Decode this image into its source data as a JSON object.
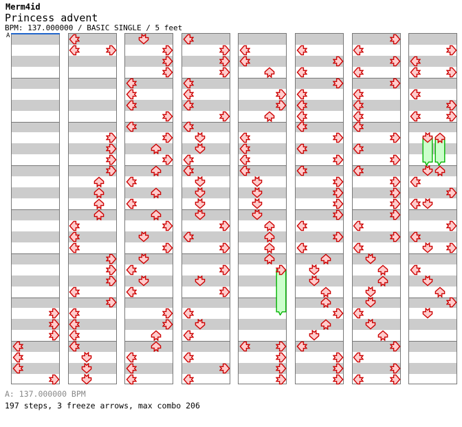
{
  "header": {
    "artist": "Merm4id",
    "title": "Princess advent",
    "meta": "BPM: 137.000000 / BASIC SINGLE / 5 feet"
  },
  "footer": {
    "bpm_line": "A: 137.000000 BPM",
    "stats_line": "197 steps, 3 freeze arrows, max combo 206"
  },
  "colors": {
    "stripe_gray": "#cccccc",
    "stripe_white": "#ffffff",
    "column_border": "#777777",
    "measure_line": "#777777",
    "arrow_fill": "#ffcccc",
    "arrow_stroke": "#cc0000",
    "freeze_fill": "#ccffcc",
    "freeze_stroke": "#00b400",
    "marker_blue": "#2266cc",
    "footer_gray": "#888888"
  },
  "chart_data": {
    "type": "ddr-step-chart",
    "title": "Princess advent",
    "bpm": "137.000000",
    "difficulty": "BASIC SINGLE",
    "feet": 5,
    "columns": 8,
    "measures_per_column": 8,
    "beats_per_measure": 4,
    "lanes": [
      "L",
      "D",
      "U",
      "R"
    ],
    "markers": [
      {
        "label": "A",
        "column": 0,
        "color": "#2266cc"
      }
    ],
    "steps": [
      [
        0,
        25,
        "R"
      ],
      [
        0,
        26,
        "R"
      ],
      [
        0,
        27,
        "R"
      ],
      [
        0,
        28,
        "L"
      ],
      [
        0,
        29,
        "L"
      ],
      [
        0,
        30,
        "L"
      ],
      [
        0,
        31,
        "R"
      ],
      [
        1,
        0,
        "L"
      ],
      [
        1,
        1,
        "L"
      ],
      [
        1,
        1,
        "R"
      ],
      [
        1,
        9,
        "R"
      ],
      [
        1,
        10,
        "R"
      ],
      [
        1,
        11,
        "R"
      ],
      [
        1,
        12,
        "R"
      ],
      [
        1,
        13,
        "U"
      ],
      [
        1,
        14,
        "U"
      ],
      [
        1,
        15,
        "U"
      ],
      [
        1,
        16,
        "U"
      ],
      [
        1,
        17,
        "L"
      ],
      [
        1,
        18,
        "L"
      ],
      [
        1,
        19,
        "L"
      ],
      [
        1,
        20,
        "R"
      ],
      [
        1,
        21,
        "R"
      ],
      [
        1,
        22,
        "R"
      ],
      [
        1,
        23,
        "L"
      ],
      [
        1,
        24,
        "R"
      ],
      [
        1,
        25,
        "L"
      ],
      [
        1,
        26,
        "L"
      ],
      [
        1,
        27,
        "L"
      ],
      [
        1,
        28,
        "L"
      ],
      [
        1,
        29,
        "D"
      ],
      [
        1,
        30,
        "D"
      ],
      [
        1,
        31,
        "D"
      ],
      [
        2,
        0,
        "D"
      ],
      [
        2,
        1,
        "R"
      ],
      [
        2,
        2,
        "R"
      ],
      [
        2,
        3,
        "R"
      ],
      [
        2,
        4,
        "L"
      ],
      [
        2,
        5,
        "L"
      ],
      [
        2,
        6,
        "L"
      ],
      [
        2,
        7,
        "R"
      ],
      [
        2,
        8,
        "L"
      ],
      [
        2,
        9,
        "R"
      ],
      [
        2,
        10,
        "U"
      ],
      [
        2,
        11,
        "R"
      ],
      [
        2,
        12,
        "U"
      ],
      [
        2,
        13,
        "L"
      ],
      [
        2,
        14,
        "U"
      ],
      [
        2,
        15,
        "L"
      ],
      [
        2,
        16,
        "U"
      ],
      [
        2,
        17,
        "R"
      ],
      [
        2,
        18,
        "D"
      ],
      [
        2,
        19,
        "R"
      ],
      [
        2,
        20,
        "D"
      ],
      [
        2,
        21,
        "L"
      ],
      [
        2,
        22,
        "D"
      ],
      [
        2,
        23,
        "L"
      ],
      [
        2,
        25,
        "R"
      ],
      [
        2,
        26,
        "R"
      ],
      [
        2,
        27,
        "U"
      ],
      [
        2,
        28,
        "U"
      ],
      [
        2,
        29,
        "L"
      ],
      [
        2,
        30,
        "L"
      ],
      [
        2,
        31,
        "L"
      ],
      [
        3,
        0,
        "L"
      ],
      [
        3,
        1,
        "R"
      ],
      [
        3,
        2,
        "R"
      ],
      [
        3,
        3,
        "R"
      ],
      [
        3,
        4,
        "L"
      ],
      [
        3,
        5,
        "L"
      ],
      [
        3,
        6,
        "L"
      ],
      [
        3,
        7,
        "R"
      ],
      [
        3,
        8,
        "L"
      ],
      [
        3,
        9,
        "D"
      ],
      [
        3,
        10,
        "D"
      ],
      [
        3,
        11,
        "L"
      ],
      [
        3,
        12,
        "L"
      ],
      [
        3,
        13,
        "D"
      ],
      [
        3,
        14,
        "D"
      ],
      [
        3,
        15,
        "D"
      ],
      [
        3,
        16,
        "D"
      ],
      [
        3,
        17,
        "R"
      ],
      [
        3,
        18,
        "L"
      ],
      [
        3,
        19,
        "R"
      ],
      [
        3,
        21,
        "R"
      ],
      [
        3,
        22,
        "D"
      ],
      [
        3,
        23,
        "R"
      ],
      [
        3,
        25,
        "L"
      ],
      [
        3,
        26,
        "D"
      ],
      [
        3,
        27,
        "L"
      ],
      [
        3,
        29,
        "L"
      ],
      [
        3,
        30,
        "R"
      ],
      [
        3,
        31,
        "L"
      ],
      [
        4,
        1,
        "L"
      ],
      [
        4,
        2,
        "L"
      ],
      [
        4,
        3,
        "U"
      ],
      [
        4,
        5,
        "R"
      ],
      [
        4,
        6,
        "R"
      ],
      [
        4,
        7,
        "U"
      ],
      [
        4,
        9,
        "L"
      ],
      [
        4,
        10,
        "L"
      ],
      [
        4,
        11,
        "L"
      ],
      [
        4,
        12,
        "L"
      ],
      [
        4,
        13,
        "D"
      ],
      [
        4,
        14,
        "D"
      ],
      [
        4,
        15,
        "D"
      ],
      [
        4,
        16,
        "D"
      ],
      [
        4,
        17,
        "U"
      ],
      [
        4,
        18,
        "U"
      ],
      [
        4,
        19,
        "U"
      ],
      [
        4,
        20,
        "U"
      ],
      [
        4,
        21,
        "R"
      ],
      [
        4,
        28,
        "L"
      ],
      [
        4,
        28,
        "R"
      ],
      [
        4,
        29,
        "R"
      ],
      [
        4,
        30,
        "R"
      ],
      [
        4,
        31,
        "R"
      ],
      [
        5,
        1,
        "L"
      ],
      [
        5,
        2,
        "R"
      ],
      [
        5,
        3,
        "L"
      ],
      [
        5,
        4,
        "R"
      ],
      [
        5,
        5,
        "L"
      ],
      [
        5,
        6,
        "L"
      ],
      [
        5,
        7,
        "L"
      ],
      [
        5,
        8,
        "L"
      ],
      [
        5,
        9,
        "R"
      ],
      [
        5,
        10,
        "L"
      ],
      [
        5,
        11,
        "R"
      ],
      [
        5,
        12,
        "L"
      ],
      [
        5,
        13,
        "R"
      ],
      [
        5,
        14,
        "R"
      ],
      [
        5,
        15,
        "R"
      ],
      [
        5,
        16,
        "R"
      ],
      [
        5,
        17,
        "L"
      ],
      [
        5,
        18,
        "R"
      ],
      [
        5,
        19,
        "L"
      ],
      [
        5,
        20,
        "U"
      ],
      [
        5,
        21,
        "D"
      ],
      [
        5,
        22,
        "D"
      ],
      [
        5,
        23,
        "U"
      ],
      [
        5,
        24,
        "U"
      ],
      [
        5,
        25,
        "R"
      ],
      [
        5,
        26,
        "U"
      ],
      [
        5,
        27,
        "D"
      ],
      [
        5,
        28,
        "L"
      ],
      [
        5,
        29,
        "R"
      ],
      [
        5,
        30,
        "R"
      ],
      [
        5,
        31,
        "R"
      ],
      [
        6,
        0,
        "R"
      ],
      [
        6,
        1,
        "L"
      ],
      [
        6,
        2,
        "R"
      ],
      [
        6,
        3,
        "L"
      ],
      [
        6,
        4,
        "R"
      ],
      [
        6,
        5,
        "L"
      ],
      [
        6,
        6,
        "L"
      ],
      [
        6,
        7,
        "L"
      ],
      [
        6,
        8,
        "L"
      ],
      [
        6,
        9,
        "R"
      ],
      [
        6,
        10,
        "L"
      ],
      [
        6,
        11,
        "R"
      ],
      [
        6,
        12,
        "L"
      ],
      [
        6,
        13,
        "R"
      ],
      [
        6,
        14,
        "R"
      ],
      [
        6,
        15,
        "R"
      ],
      [
        6,
        16,
        "R"
      ],
      [
        6,
        17,
        "L"
      ],
      [
        6,
        18,
        "R"
      ],
      [
        6,
        19,
        "L"
      ],
      [
        6,
        20,
        "D"
      ],
      [
        6,
        21,
        "U"
      ],
      [
        6,
        22,
        "U"
      ],
      [
        6,
        23,
        "D"
      ],
      [
        6,
        24,
        "D"
      ],
      [
        6,
        25,
        "L"
      ],
      [
        6,
        26,
        "D"
      ],
      [
        6,
        27,
        "U"
      ],
      [
        6,
        28,
        "R"
      ],
      [
        6,
        29,
        "L"
      ],
      [
        6,
        30,
        "R"
      ],
      [
        6,
        31,
        "L"
      ],
      [
        6,
        31,
        "R"
      ],
      [
        7,
        1,
        "R"
      ],
      [
        7,
        2,
        "L"
      ],
      [
        7,
        3,
        "L"
      ],
      [
        7,
        3,
        "R"
      ],
      [
        7,
        5,
        "L"
      ],
      [
        7,
        6,
        "R"
      ],
      [
        7,
        7,
        "L"
      ],
      [
        7,
        7,
        "R"
      ],
      [
        7,
        9,
        "D"
      ],
      [
        7,
        9,
        "U"
      ],
      [
        7,
        12,
        "D"
      ],
      [
        7,
        12,
        "U"
      ],
      [
        7,
        13,
        "L"
      ],
      [
        7,
        14,
        "R"
      ],
      [
        7,
        15,
        "L"
      ],
      [
        7,
        15,
        "D"
      ],
      [
        7,
        17,
        "R"
      ],
      [
        7,
        18,
        "L"
      ],
      [
        7,
        19,
        "D"
      ],
      [
        7,
        19,
        "R"
      ],
      [
        7,
        21,
        "L"
      ],
      [
        7,
        22,
        "D"
      ],
      [
        7,
        23,
        "U"
      ],
      [
        7,
        24,
        "R"
      ],
      [
        7,
        25,
        "D"
      ]
    ],
    "freezes": [
      {
        "c": 4,
        "s": 21,
        "l": "R",
        "beats": 4.6
      },
      {
        "c": 7,
        "s": 9,
        "l": "D",
        "beats": 3
      },
      {
        "c": 7,
        "s": 9,
        "l": "U",
        "beats": 3
      }
    ]
  }
}
